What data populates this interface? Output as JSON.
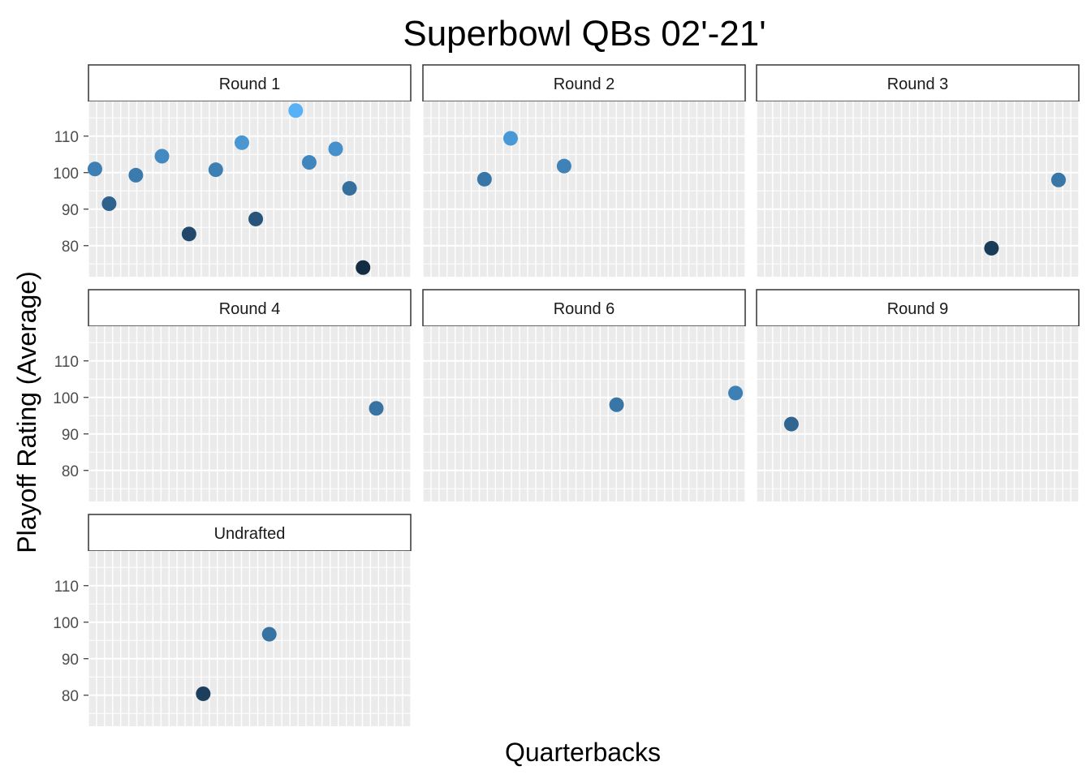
{
  "chart_data": {
    "type": "scatter",
    "title": "Superbowl QBs 02'-21'",
    "xlabel": "Quarterbacks",
    "ylabel": "Playoff Rating (Average)",
    "y_ticks": [
      80,
      90,
      100,
      110
    ],
    "ylim": [
      71.5,
      119.5
    ],
    "xlim": [
      0,
      1
    ],
    "grid": true,
    "layout": "facet-wrap 3 columns",
    "color_scale": {
      "low": "#132b43",
      "high": "#56b1f7",
      "min": 74,
      "max": 117
    },
    "facets": [
      {
        "label": "Round 1",
        "points": [
          {
            "x": 0.02,
            "y": 101
          },
          {
            "x": 0.064,
            "y": 91.5
          },
          {
            "x": 0.147,
            "y": 99.3
          },
          {
            "x": 0.228,
            "y": 104.5
          },
          {
            "x": 0.312,
            "y": 83.2
          },
          {
            "x": 0.395,
            "y": 100.8
          },
          {
            "x": 0.476,
            "y": 108.2
          },
          {
            "x": 0.519,
            "y": 87.3
          },
          {
            "x": 0.643,
            "y": 117
          },
          {
            "x": 0.685,
            "y": 102.8
          },
          {
            "x": 0.767,
            "y": 106.5
          },
          {
            "x": 0.81,
            "y": 95.7
          },
          {
            "x": 0.852,
            "y": 74
          }
        ]
      },
      {
        "label": "Round 2",
        "points": [
          {
            "x": 0.191,
            "y": 98.2
          },
          {
            "x": 0.272,
            "y": 109.4
          },
          {
            "x": 0.438,
            "y": 101.8
          }
        ]
      },
      {
        "label": "Round 3",
        "points": [
          {
            "x": 0.729,
            "y": 79.3
          },
          {
            "x": 0.937,
            "y": 98
          }
        ]
      },
      {
        "label": "Round 4",
        "points": [
          {
            "x": 0.893,
            "y": 97
          }
        ]
      },
      {
        "label": "Round 6",
        "points": [
          {
            "x": 0.601,
            "y": 98
          },
          {
            "x": 0.97,
            "y": 101.2
          }
        ]
      },
      {
        "label": "Round 9",
        "points": [
          {
            "x": 0.108,
            "y": 92.7
          }
        ]
      },
      {
        "label": "Undrafted",
        "points": [
          {
            "x": 0.356,
            "y": 80.4
          },
          {
            "x": 0.561,
            "y": 96.7
          }
        ]
      }
    ]
  }
}
